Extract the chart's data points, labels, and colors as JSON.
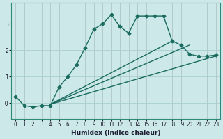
{
  "xlabel": "Humidex (Indice chaleur)",
  "bg_color": "#cce8e8",
  "line_color": "#1a6b60",
  "grid_color": "#aacfcf",
  "xlim": [
    -0.5,
    23.5
  ],
  "ylim": [
    -0.6,
    3.8
  ],
  "xticks": [
    0,
    1,
    2,
    3,
    4,
    5,
    6,
    7,
    8,
    9,
    10,
    11,
    12,
    13,
    14,
    15,
    16,
    17,
    18,
    19,
    20,
    21,
    22,
    23
  ],
  "yticks": [
    0,
    1,
    2,
    3
  ],
  "ytick_labels": [
    "-0",
    "1",
    "2",
    "3"
  ],
  "series1_x": [
    0,
    1,
    2,
    3,
    4,
    5,
    6,
    7,
    8,
    9,
    10,
    11,
    12,
    13,
    14,
    15,
    16,
    17,
    18,
    19,
    20,
    21,
    22,
    23
  ],
  "series1_y": [
    0.25,
    -0.1,
    -0.15,
    -0.1,
    -0.1,
    0.6,
    1.0,
    1.45,
    2.1,
    2.8,
    3.0,
    3.35,
    2.9,
    2.65,
    3.3,
    3.3,
    3.3,
    3.3,
    2.35,
    2.2,
    1.85,
    1.78,
    1.78,
    1.82
  ],
  "series2_x": [
    4,
    23
  ],
  "series2_y": [
    -0.05,
    1.78
  ],
  "series3_x": [
    4,
    20
  ],
  "series3_y": [
    -0.05,
    2.2
  ],
  "series4_x": [
    4,
    18
  ],
  "series4_y": [
    -0.05,
    2.35
  ],
  "marker": "D",
  "markersize": 2.5,
  "linewidth": 1.0
}
